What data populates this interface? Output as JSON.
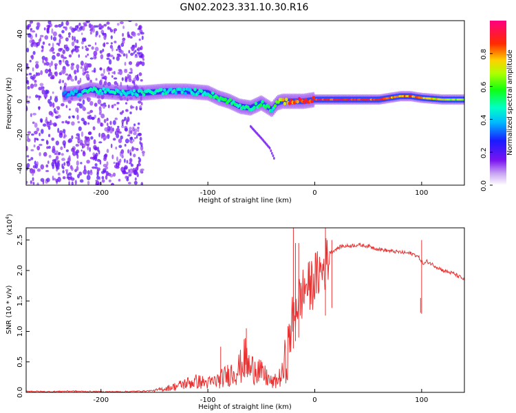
{
  "title": "GN02.2023.331.10.30.R16",
  "colors": {
    "snr_line": "#e83232",
    "background": "#ffffff",
    "axis": "#000000"
  },
  "chart_data": [
    {
      "type": "heatmap",
      "xlabel": "Height of straight line (km)",
      "ylabel": "Frequency (Hz)",
      "xlim": [
        -270,
        140
      ],
      "ylim": [
        -50,
        48
      ],
      "x_ticks": [
        -200,
        -100,
        0,
        100
      ],
      "y_ticks": [
        -40,
        -20,
        0,
        20,
        40
      ],
      "x_tick_labels": [
        "-200",
        "-100",
        "0",
        "100"
      ],
      "y_tick_labels": [
        "-40",
        "-20",
        "0",
        "20",
        "40"
      ],
      "colorbar": {
        "label": "Normalized spectral amplitude",
        "range": [
          0,
          1
        ],
        "ticks": [
          0.0,
          0.2,
          0.4,
          0.6,
          0.8
        ],
        "tick_labels": [
          "0.0",
          "0.2",
          "0.4",
          "0.6",
          "0.8"
        ],
        "colormap": "rainbow (white-violet-blue-cyan-green-yellow-red-magenta)"
      },
      "ridge": {
        "description": "dominant frequency trace (Hz) vs height (km)",
        "x": [
          -235,
          -220,
          -210,
          -200,
          -180,
          -160,
          -140,
          -120,
          -100,
          -90,
          -80,
          -70,
          -60,
          -50,
          -45,
          -40,
          -35,
          -30,
          -25,
          -20,
          -10,
          0,
          20,
          40,
          60,
          80,
          90,
          100,
          120,
          140
        ],
        "freq": [
          4,
          5,
          7,
          6,
          5,
          5,
          6,
          6,
          5,
          2,
          0,
          -3,
          -4,
          -1,
          -3,
          -5,
          -1,
          0,
          0,
          0,
          0,
          1,
          1,
          1,
          1,
          3,
          3,
          2,
          1,
          1
        ],
        "amplitude": [
          0.35,
          0.45,
          0.5,
          0.5,
          0.45,
          0.5,
          0.5,
          0.45,
          0.5,
          0.55,
          0.55,
          0.5,
          0.5,
          0.55,
          0.55,
          0.5,
          0.65,
          0.75,
          0.85,
          0.9,
          0.95,
          0.95,
          0.95,
          0.95,
          0.9,
          0.8,
          0.85,
          0.8,
          0.75,
          0.65
        ]
      },
      "scatter_region": {
        "x_range": [
          -270,
          -160
        ],
        "freq_range": [
          -50,
          48
        ],
        "amplitude": 0.1
      },
      "branch": {
        "x": [
          -60,
          -50,
          -42,
          -38
        ],
        "freq": [
          -15,
          -22,
          -28,
          -34
        ]
      }
    },
    {
      "type": "line",
      "xlabel": "Height of straight line (km)",
      "ylabel": "SNR (10 * v/v)",
      "y_multiplier_label": "(x10",
      "y_multiplier_exp": "4",
      "y_multiplier_close": ")",
      "xlim": [
        -270,
        140
      ],
      "ylim": [
        0,
        2.7
      ],
      "x_ticks": [
        -200,
        -100,
        0,
        100
      ],
      "y_ticks": [
        0.0,
        0.5,
        1.0,
        1.5,
        2.0,
        2.5
      ],
      "x_tick_labels": [
        "-200",
        "-100",
        "0",
        "100"
      ],
      "y_tick_labels": [
        "0.0",
        "0.5",
        "1.0",
        "1.5",
        "2.0",
        "2.5"
      ],
      "series": [
        {
          "x": [
            -270,
            -250,
            -230,
            -200,
            -180,
            -160,
            -150,
            -140,
            -130,
            -120,
            -110,
            -100,
            -90,
            -80,
            -70,
            -65,
            -60,
            -55,
            -50,
            -45,
            -40,
            -35,
            -30,
            -27,
            -24,
            -22,
            -20,
            -18,
            -16,
            -14,
            -12,
            -10,
            -8,
            -6,
            -4,
            -2,
            0,
            2,
            4,
            6,
            8,
            10,
            12,
            15,
            20,
            25,
            30,
            40,
            50,
            60,
            70,
            80,
            90,
            95,
            98,
            100,
            102,
            105,
            110,
            115,
            120,
            130,
            140
          ],
          "values": [
            0.02,
            0.01,
            0.02,
            0.01,
            0.01,
            0.02,
            0.03,
            0.06,
            0.1,
            0.15,
            0.18,
            0.15,
            0.2,
            0.3,
            0.4,
            0.55,
            0.35,
            0.45,
            0.3,
            0.25,
            0.15,
            0.2,
            0.3,
            0.5,
            0.8,
            1.1,
            1.2,
            1.4,
            1.5,
            1.5,
            1.6,
            1.65,
            1.8,
            1.7,
            1.75,
            1.8,
            1.9,
            1.85,
            2.0,
            1.95,
            2.05,
            2.1,
            2.2,
            2.3,
            2.35,
            2.4,
            2.4,
            2.42,
            2.4,
            2.35,
            2.32,
            2.3,
            2.28,
            2.25,
            2.2,
            2.15,
            2.1,
            2.15,
            2.1,
            2.05,
            2.0,
            1.95,
            1.85
          ]
        }
      ],
      "spikes": [
        {
          "x": -88,
          "value": 0.75
        },
        {
          "x": -64,
          "value": 1.05
        },
        {
          "x": -20,
          "value": 2.7
        },
        {
          "x": -18,
          "value": 2.45
        },
        {
          "x": -15,
          "value": 2.45
        },
        {
          "x": 10,
          "value": 2.7
        },
        {
          "x": 16,
          "value": 2.5
        },
        {
          "x": 99,
          "value": 1.55
        },
        {
          "x": 100,
          "value": 2.5
        }
      ]
    }
  ]
}
